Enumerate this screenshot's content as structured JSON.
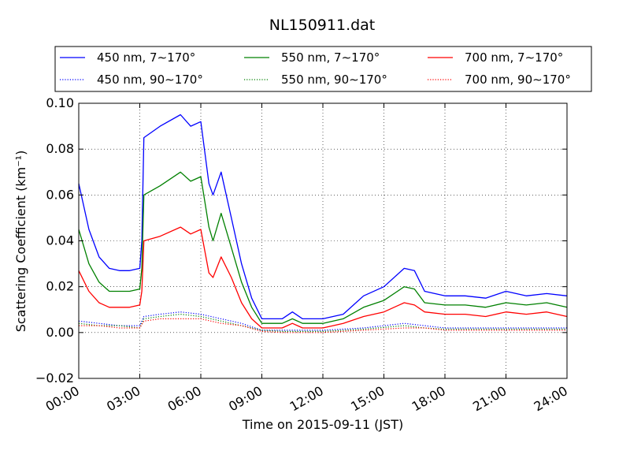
{
  "chart_data": {
    "type": "line",
    "title": "NL150911.dat",
    "xlabel": "Time on 2015-09-11 (JST)",
    "ylabel": "Scattering Coefficient (km⁻¹)",
    "xlim_hours": [
      0,
      24
    ],
    "ylim": [
      -0.02,
      0.1
    ],
    "x_ticks": [
      "00:00",
      "03:00",
      "06:00",
      "09:00",
      "12:00",
      "15:00",
      "18:00",
      "21:00",
      "24:00"
    ],
    "y_ticks": [
      "−0.02",
      "0.00",
      "0.02",
      "0.04",
      "0.06",
      "0.08",
      "0.10"
    ],
    "grid": true,
    "legend_position": "top, above plot",
    "series": [
      {
        "name": "450 nm, 7∼170°",
        "color": "#0000ff",
        "style": "solid",
        "x": [
          0,
          0.5,
          1,
          1.5,
          2,
          2.5,
          3,
          3.1,
          3.2,
          4,
          5,
          5.5,
          6,
          6.4,
          6.6,
          7,
          7.5,
          8,
          8.5,
          9,
          10,
          10.5,
          11,
          12,
          13,
          14,
          15,
          16,
          16.5,
          17,
          18,
          19,
          20,
          21,
          22,
          23,
          24
        ],
        "y": [
          0.065,
          0.045,
          0.033,
          0.028,
          0.027,
          0.027,
          0.028,
          0.04,
          0.085,
          0.09,
          0.095,
          0.09,
          0.092,
          0.065,
          0.06,
          0.07,
          0.05,
          0.03,
          0.015,
          0.006,
          0.006,
          0.009,
          0.006,
          0.006,
          0.008,
          0.016,
          0.02,
          0.028,
          0.027,
          0.018,
          0.016,
          0.016,
          0.015,
          0.018,
          0.016,
          0.017,
          0.016
        ]
      },
      {
        "name": "550 nm, 7∼170°",
        "color": "#008000",
        "style": "solid",
        "x": [
          0,
          0.5,
          1,
          1.5,
          2,
          2.5,
          3,
          3.1,
          3.2,
          4,
          5,
          5.5,
          6,
          6.4,
          6.6,
          7,
          7.5,
          8,
          8.5,
          9,
          10,
          10.5,
          11,
          12,
          13,
          14,
          15,
          16,
          16.5,
          17,
          18,
          19,
          20,
          21,
          22,
          23,
          24
        ],
        "y": [
          0.045,
          0.03,
          0.022,
          0.018,
          0.018,
          0.018,
          0.019,
          0.028,
          0.06,
          0.064,
          0.07,
          0.066,
          0.068,
          0.046,
          0.04,
          0.052,
          0.037,
          0.022,
          0.011,
          0.004,
          0.004,
          0.006,
          0.004,
          0.004,
          0.006,
          0.011,
          0.014,
          0.02,
          0.019,
          0.013,
          0.012,
          0.012,
          0.011,
          0.013,
          0.012,
          0.013,
          0.011
        ]
      },
      {
        "name": "700 nm, 7∼170°",
        "color": "#ff0000",
        "style": "solid",
        "x": [
          0,
          0.5,
          1,
          1.5,
          2,
          2.5,
          3,
          3.1,
          3.2,
          4,
          5,
          5.5,
          6,
          6.4,
          6.6,
          7,
          7.5,
          8,
          8.5,
          9,
          10,
          10.5,
          11,
          12,
          13,
          14,
          15,
          16,
          16.5,
          17,
          18,
          19,
          20,
          21,
          22,
          23,
          24
        ],
        "y": [
          0.027,
          0.018,
          0.013,
          0.011,
          0.011,
          0.011,
          0.012,
          0.018,
          0.04,
          0.042,
          0.046,
          0.043,
          0.045,
          0.026,
          0.024,
          0.033,
          0.024,
          0.013,
          0.006,
          0.002,
          0.002,
          0.004,
          0.002,
          0.002,
          0.004,
          0.007,
          0.009,
          0.013,
          0.012,
          0.009,
          0.008,
          0.008,
          0.007,
          0.009,
          0.008,
          0.009,
          0.007
        ]
      },
      {
        "name": "450 nm, 90∼170°",
        "color": "#0000ff",
        "style": "dotted",
        "x": [
          0,
          1,
          2,
          3,
          3.2,
          4,
          5,
          6,
          7,
          8,
          9,
          10,
          12,
          14,
          16,
          17,
          18,
          20,
          22,
          24
        ],
        "y": [
          0.005,
          0.004,
          0.003,
          0.003,
          0.007,
          0.008,
          0.009,
          0.008,
          0.006,
          0.004,
          0.001,
          0.001,
          0.001,
          0.002,
          0.004,
          0.003,
          0.002,
          0.002,
          0.002,
          0.002
        ]
      },
      {
        "name": "550 nm, 90∼170°",
        "color": "#008000",
        "style": "dotted",
        "x": [
          0,
          1,
          2,
          3,
          3.2,
          4,
          5,
          6,
          7,
          8,
          9,
          10,
          12,
          14,
          16,
          17,
          18,
          20,
          22,
          24
        ],
        "y": [
          0.004,
          0.003,
          0.003,
          0.002,
          0.006,
          0.007,
          0.008,
          0.007,
          0.005,
          0.003,
          0.001,
          0.0005,
          0.0005,
          0.0015,
          0.003,
          0.002,
          0.0015,
          0.0015,
          0.0015,
          0.0015
        ]
      },
      {
        "name": "700 nm, 90∼170°",
        "color": "#ff0000",
        "style": "dotted",
        "x": [
          0,
          1,
          2,
          3,
          3.2,
          4,
          5,
          6,
          7,
          8,
          9,
          10,
          12,
          14,
          16,
          17,
          18,
          20,
          22,
          24
        ],
        "y": [
          0.003,
          0.003,
          0.002,
          0.002,
          0.005,
          0.006,
          0.006,
          0.006,
          0.004,
          0.003,
          0.0005,
          0.0,
          0.0,
          0.001,
          0.002,
          0.002,
          0.001,
          0.001,
          0.001,
          0.001
        ]
      }
    ]
  }
}
